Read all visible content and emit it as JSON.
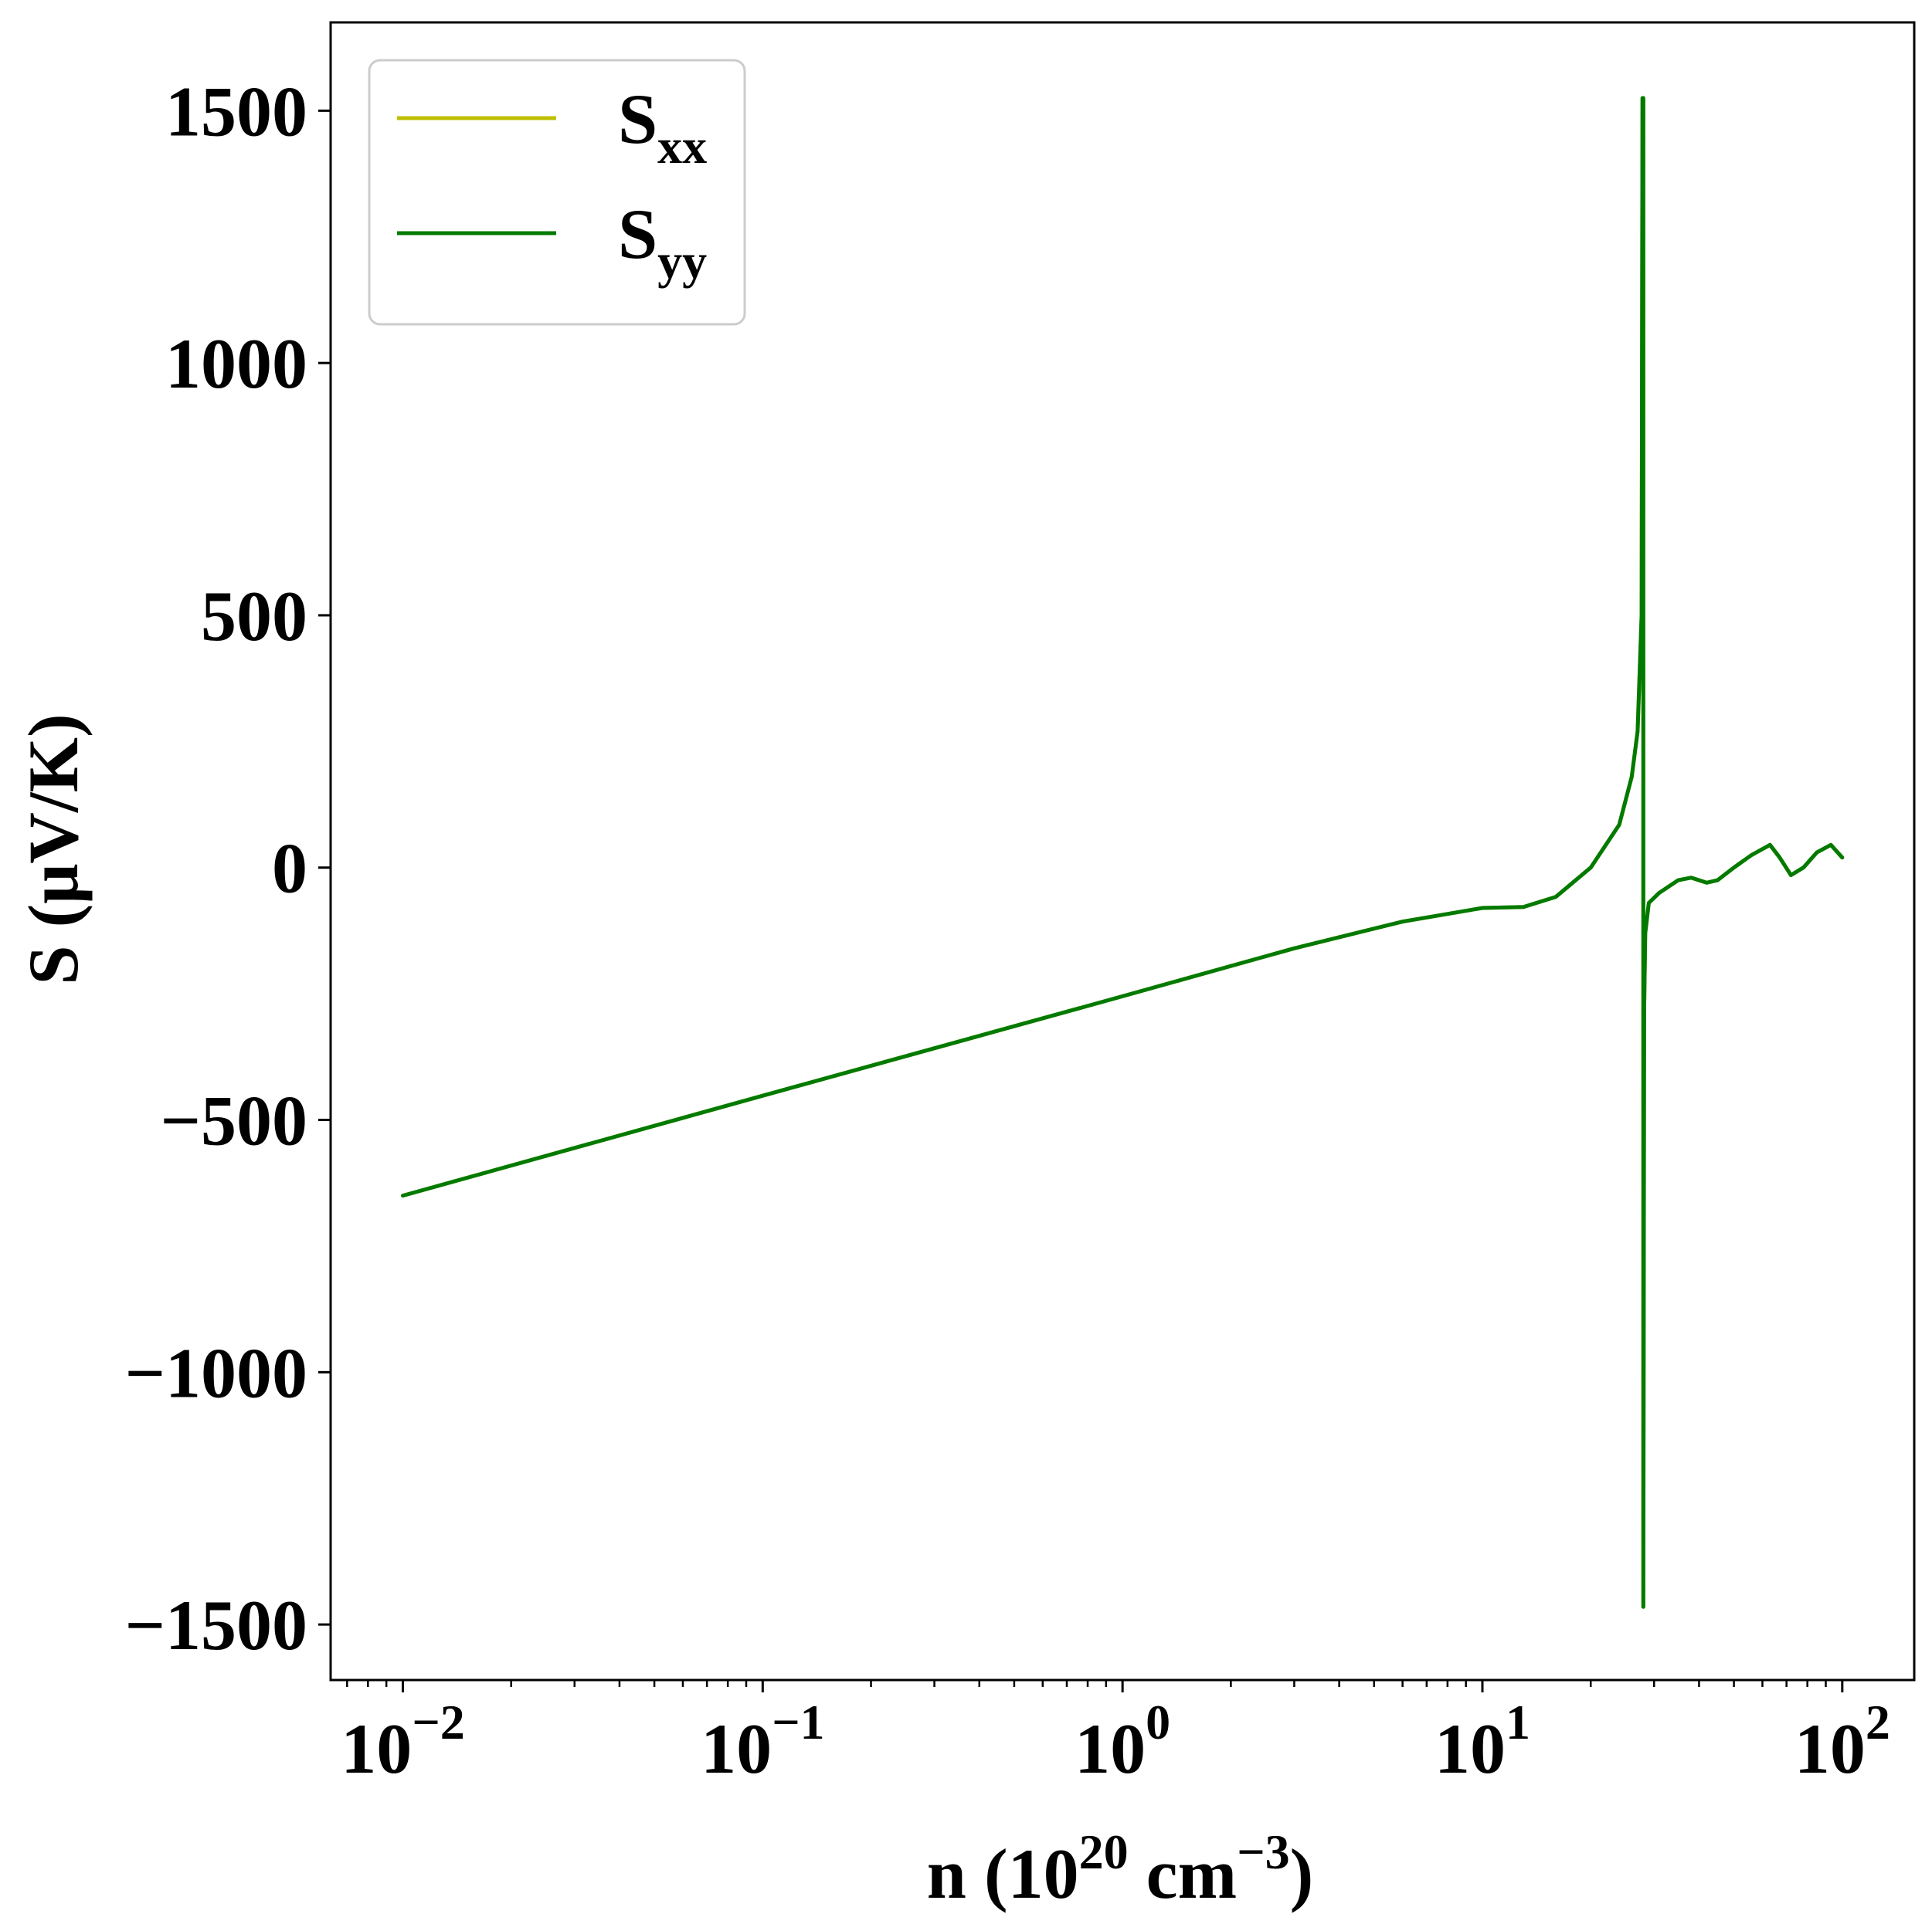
{
  "chart_data": {
    "type": "line",
    "title": "",
    "xlabel": {
      "base": "n (10",
      "sup1": "20",
      "mid": " cm",
      "sup2": "−3",
      "end": ")"
    },
    "ylabel": "S (μV/K)",
    "x_scale": "log",
    "xlim": [
      0.0063,
      158.5
    ],
    "ylim": [
      -1610,
      1675
    ],
    "x_ticks": [
      {
        "value": 0.01,
        "base": "10",
        "exp": "−2"
      },
      {
        "value": 0.1,
        "base": "10",
        "exp": "−1"
      },
      {
        "value": 1,
        "base": "10",
        "exp": "0"
      },
      {
        "value": 10,
        "base": "10",
        "exp": "1"
      },
      {
        "value": 100,
        "base": "10",
        "exp": "2"
      }
    ],
    "y_ticks": [
      {
        "value": 1500,
        "label": "1500"
      },
      {
        "value": 1000,
        "label": "1000"
      },
      {
        "value": 500,
        "label": "500"
      },
      {
        "value": 0,
        "label": "0"
      },
      {
        "value": -500,
        "label": "−500"
      },
      {
        "value": -1000,
        "label": "−1000"
      },
      {
        "value": -1500,
        "label": "−1500"
      }
    ],
    "grid": false,
    "legend": {
      "position": "top-left",
      "entries": [
        {
          "name": "S",
          "sub": "xx",
          "color": "#bfbf00"
        },
        {
          "name": "S",
          "sub": "yy",
          "color": "#007a00"
        }
      ]
    },
    "series": [
      {
        "name": "Sxx",
        "color": "#bfbf00",
        "x": [
          0.01,
          0.1,
          1,
          3,
          6,
          10,
          13,
          16,
          20,
          24,
          26,
          27,
          27.7,
          27.85,
          28.0,
          28.0,
          28.15,
          28.35,
          29,
          31,
          35,
          38,
          42,
          45,
          50,
          56,
          63,
          67,
          72,
          78,
          85,
          93,
          100
        ],
        "y": [
          -650,
          -452,
          -255,
          -160,
          -107,
          -80,
          -78,
          -58,
          0,
          85,
          180,
          270,
          500,
          1525,
          1525,
          -1465,
          -280,
          -130,
          -70,
          -50,
          -25,
          -20,
          -30,
          -25,
          0,
          25,
          45,
          20,
          -15,
          0,
          30,
          45,
          20
        ]
      },
      {
        "name": "Syy",
        "color": "#007a00",
        "x": [
          0.01,
          0.1,
          1,
          3,
          6,
          10,
          13,
          16,
          20,
          24,
          26,
          27,
          27.7,
          27.85,
          28.0,
          28.0,
          28.15,
          28.35,
          29,
          31,
          35,
          38,
          42,
          45,
          50,
          56,
          63,
          67,
          72,
          78,
          85,
          93,
          100
        ],
        "y": [
          -650,
          -452,
          -255,
          -160,
          -107,
          -80,
          -78,
          -58,
          0,
          85,
          180,
          270,
          500,
          1525,
          1525,
          -1465,
          -280,
          -130,
          -70,
          -50,
          -25,
          -20,
          -30,
          -25,
          0,
          25,
          45,
          20,
          -15,
          0,
          30,
          45,
          20
        ]
      }
    ]
  }
}
